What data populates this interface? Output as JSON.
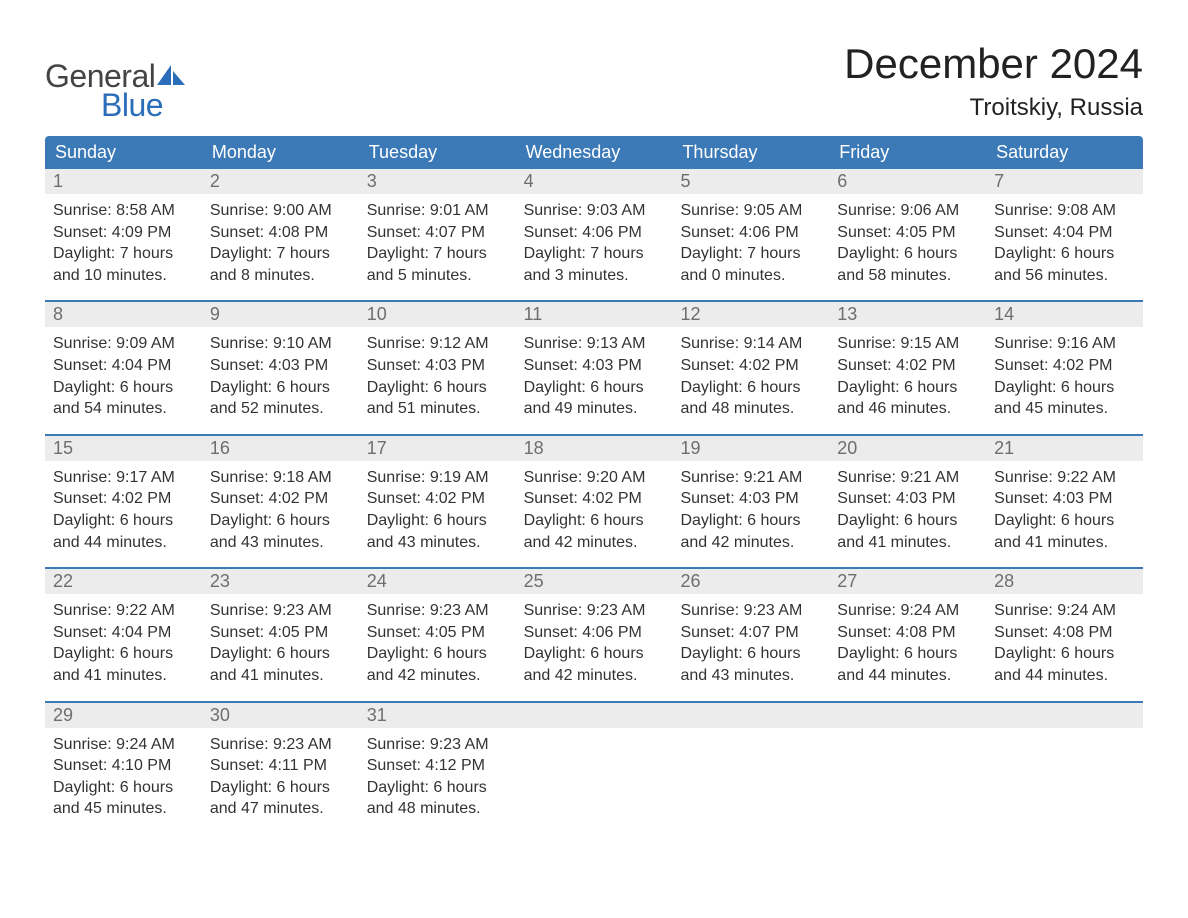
{
  "logo": {
    "part1": "General",
    "part2": "Blue",
    "sail_color": "#2a6db8"
  },
  "title": "December 2024",
  "location": "Troitskiy, Russia",
  "colors": {
    "header_bg": "#3b79b7",
    "header_text": "#ffffff",
    "daynum_bg": "#ececec",
    "daynum_text": "#6e6e6e",
    "body_text": "#333333",
    "rule": "#3b79b7"
  },
  "day_headers": [
    "Sunday",
    "Monday",
    "Tuesday",
    "Wednesday",
    "Thursday",
    "Friday",
    "Saturday"
  ],
  "weeks": [
    [
      {
        "n": "1",
        "sunrise": "8:58 AM",
        "sunset": "4:09 PM",
        "dl1": "7 hours",
        "dl2": "and 10 minutes."
      },
      {
        "n": "2",
        "sunrise": "9:00 AM",
        "sunset": "4:08 PM",
        "dl1": "7 hours",
        "dl2": "and 8 minutes."
      },
      {
        "n": "3",
        "sunrise": "9:01 AM",
        "sunset": "4:07 PM",
        "dl1": "7 hours",
        "dl2": "and 5 minutes."
      },
      {
        "n": "4",
        "sunrise": "9:03 AM",
        "sunset": "4:06 PM",
        "dl1": "7 hours",
        "dl2": "and 3 minutes."
      },
      {
        "n": "5",
        "sunrise": "9:05 AM",
        "sunset": "4:06 PM",
        "dl1": "7 hours",
        "dl2": "and 0 minutes."
      },
      {
        "n": "6",
        "sunrise": "9:06 AM",
        "sunset": "4:05 PM",
        "dl1": "6 hours",
        "dl2": "and 58 minutes."
      },
      {
        "n": "7",
        "sunrise": "9:08 AM",
        "sunset": "4:04 PM",
        "dl1": "6 hours",
        "dl2": "and 56 minutes."
      }
    ],
    [
      {
        "n": "8",
        "sunrise": "9:09 AM",
        "sunset": "4:04 PM",
        "dl1": "6 hours",
        "dl2": "and 54 minutes."
      },
      {
        "n": "9",
        "sunrise": "9:10 AM",
        "sunset": "4:03 PM",
        "dl1": "6 hours",
        "dl2": "and 52 minutes."
      },
      {
        "n": "10",
        "sunrise": "9:12 AM",
        "sunset": "4:03 PM",
        "dl1": "6 hours",
        "dl2": "and 51 minutes."
      },
      {
        "n": "11",
        "sunrise": "9:13 AM",
        "sunset": "4:03 PM",
        "dl1": "6 hours",
        "dl2": "and 49 minutes."
      },
      {
        "n": "12",
        "sunrise": "9:14 AM",
        "sunset": "4:02 PM",
        "dl1": "6 hours",
        "dl2": "and 48 minutes."
      },
      {
        "n": "13",
        "sunrise": "9:15 AM",
        "sunset": "4:02 PM",
        "dl1": "6 hours",
        "dl2": "and 46 minutes."
      },
      {
        "n": "14",
        "sunrise": "9:16 AM",
        "sunset": "4:02 PM",
        "dl1": "6 hours",
        "dl2": "and 45 minutes."
      }
    ],
    [
      {
        "n": "15",
        "sunrise": "9:17 AM",
        "sunset": "4:02 PM",
        "dl1": "6 hours",
        "dl2": "and 44 minutes."
      },
      {
        "n": "16",
        "sunrise": "9:18 AM",
        "sunset": "4:02 PM",
        "dl1": "6 hours",
        "dl2": "and 43 minutes."
      },
      {
        "n": "17",
        "sunrise": "9:19 AM",
        "sunset": "4:02 PM",
        "dl1": "6 hours",
        "dl2": "and 43 minutes."
      },
      {
        "n": "18",
        "sunrise": "9:20 AM",
        "sunset": "4:02 PM",
        "dl1": "6 hours",
        "dl2": "and 42 minutes."
      },
      {
        "n": "19",
        "sunrise": "9:21 AM",
        "sunset": "4:03 PM",
        "dl1": "6 hours",
        "dl2": "and 42 minutes."
      },
      {
        "n": "20",
        "sunrise": "9:21 AM",
        "sunset": "4:03 PM",
        "dl1": "6 hours",
        "dl2": "and 41 minutes."
      },
      {
        "n": "21",
        "sunrise": "9:22 AM",
        "sunset": "4:03 PM",
        "dl1": "6 hours",
        "dl2": "and 41 minutes."
      }
    ],
    [
      {
        "n": "22",
        "sunrise": "9:22 AM",
        "sunset": "4:04 PM",
        "dl1": "6 hours",
        "dl2": "and 41 minutes."
      },
      {
        "n": "23",
        "sunrise": "9:23 AM",
        "sunset": "4:05 PM",
        "dl1": "6 hours",
        "dl2": "and 41 minutes."
      },
      {
        "n": "24",
        "sunrise": "9:23 AM",
        "sunset": "4:05 PM",
        "dl1": "6 hours",
        "dl2": "and 42 minutes."
      },
      {
        "n": "25",
        "sunrise": "9:23 AM",
        "sunset": "4:06 PM",
        "dl1": "6 hours",
        "dl2": "and 42 minutes."
      },
      {
        "n": "26",
        "sunrise": "9:23 AM",
        "sunset": "4:07 PM",
        "dl1": "6 hours",
        "dl2": "and 43 minutes."
      },
      {
        "n": "27",
        "sunrise": "9:24 AM",
        "sunset": "4:08 PM",
        "dl1": "6 hours",
        "dl2": "and 44 minutes."
      },
      {
        "n": "28",
        "sunrise": "9:24 AM",
        "sunset": "4:08 PM",
        "dl1": "6 hours",
        "dl2": "and 44 minutes."
      }
    ],
    [
      {
        "n": "29",
        "sunrise": "9:24 AM",
        "sunset": "4:10 PM",
        "dl1": "6 hours",
        "dl2": "and 45 minutes."
      },
      {
        "n": "30",
        "sunrise": "9:23 AM",
        "sunset": "4:11 PM",
        "dl1": "6 hours",
        "dl2": "and 47 minutes."
      },
      {
        "n": "31",
        "sunrise": "9:23 AM",
        "sunset": "4:12 PM",
        "dl1": "6 hours",
        "dl2": "and 48 minutes."
      },
      {
        "empty": true
      },
      {
        "empty": true
      },
      {
        "empty": true
      },
      {
        "empty": true
      }
    ]
  ],
  "labels": {
    "sunrise": "Sunrise: ",
    "sunset": "Sunset: ",
    "daylight": "Daylight: "
  }
}
